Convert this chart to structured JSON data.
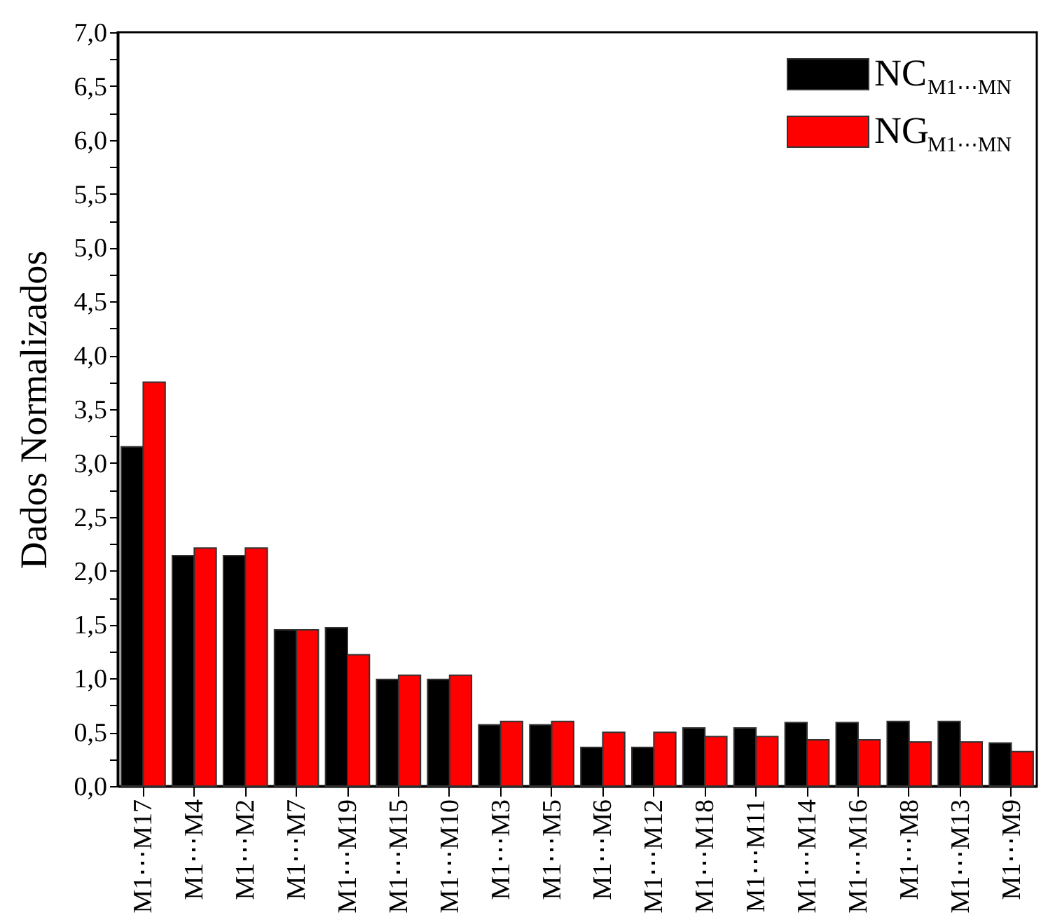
{
  "chart_data": {
    "type": "bar",
    "ylabel": "Dados Normalizados",
    "categories": [
      "M1⋯M17",
      "M1⋯M4",
      "M1⋯M2",
      "M1⋯M7",
      "M1⋯M19",
      "M1⋯M15",
      "M1⋯M10",
      "M1⋯M3",
      "M1⋯M5",
      "M1⋯M6",
      "M1⋯M12",
      "M1⋯M18",
      "M1⋯M11",
      "M1⋯M14",
      "M1⋯M16",
      "M1⋯M8",
      "M1⋯M13",
      "M1⋯M9"
    ],
    "series": [
      {
        "name": "NC$_{M1⋯MN}$",
        "color": "#000000",
        "values": [
          3.15,
          2.14,
          2.14,
          1.45,
          1.47,
          0.99,
          0.99,
          0.57,
          0.57,
          0.36,
          0.36,
          0.54,
          0.54,
          0.59,
          0.59,
          0.6,
          0.6,
          0.4
        ]
      },
      {
        "name": "NG$_{M1⋯MN}$",
        "color": "#ff0000",
        "values": [
          3.75,
          2.21,
          2.21,
          1.45,
          1.22,
          1.03,
          1.03,
          0.6,
          0.6,
          0.5,
          0.5,
          0.46,
          0.46,
          0.43,
          0.43,
          0.41,
          0.41,
          0.32
        ]
      }
    ],
    "ylim": [
      0,
      7
    ],
    "yticks": [
      {
        "value": 0,
        "label": "0,0"
      },
      {
        "value": 0.25,
        "label": null
      },
      {
        "value": 0.5,
        "label": "0,5"
      },
      {
        "value": 0.75,
        "label": null
      },
      {
        "value": 1,
        "label": "1,0"
      },
      {
        "value": 1.25,
        "label": null
      },
      {
        "value": 1.5,
        "label": "1,5"
      },
      {
        "value": 1.75,
        "label": null
      },
      {
        "value": 2,
        "label": "2,0"
      },
      {
        "value": 2.25,
        "label": null
      },
      {
        "value": 2.5,
        "label": "2,5"
      },
      {
        "value": 2.75,
        "label": null
      },
      {
        "value": 3,
        "label": "3,0"
      },
      {
        "value": 3.25,
        "label": null
      },
      {
        "value": 3.5,
        "label": "3,5"
      },
      {
        "value": 3.75,
        "label": null
      },
      {
        "value": 4,
        "label": "4,0"
      },
      {
        "value": 4.25,
        "label": null
      },
      {
        "value": 4.5,
        "label": "4,5"
      },
      {
        "value": 4.75,
        "label": null
      },
      {
        "value": 5,
        "label": "5,0"
      },
      {
        "value": 5.25,
        "label": null
      },
      {
        "value": 5.5,
        "label": "5,5"
      },
      {
        "value": 5.75,
        "label": null
      },
      {
        "value": 6,
        "label": "6,0"
      },
      {
        "value": 6.25,
        "label": null
      },
      {
        "value": 6.5,
        "label": "6,5"
      },
      {
        "value": 6.75,
        "label": null
      },
      {
        "value": 7,
        "label": "7,0"
      }
    ],
    "grid": false,
    "legend": "top right"
  }
}
